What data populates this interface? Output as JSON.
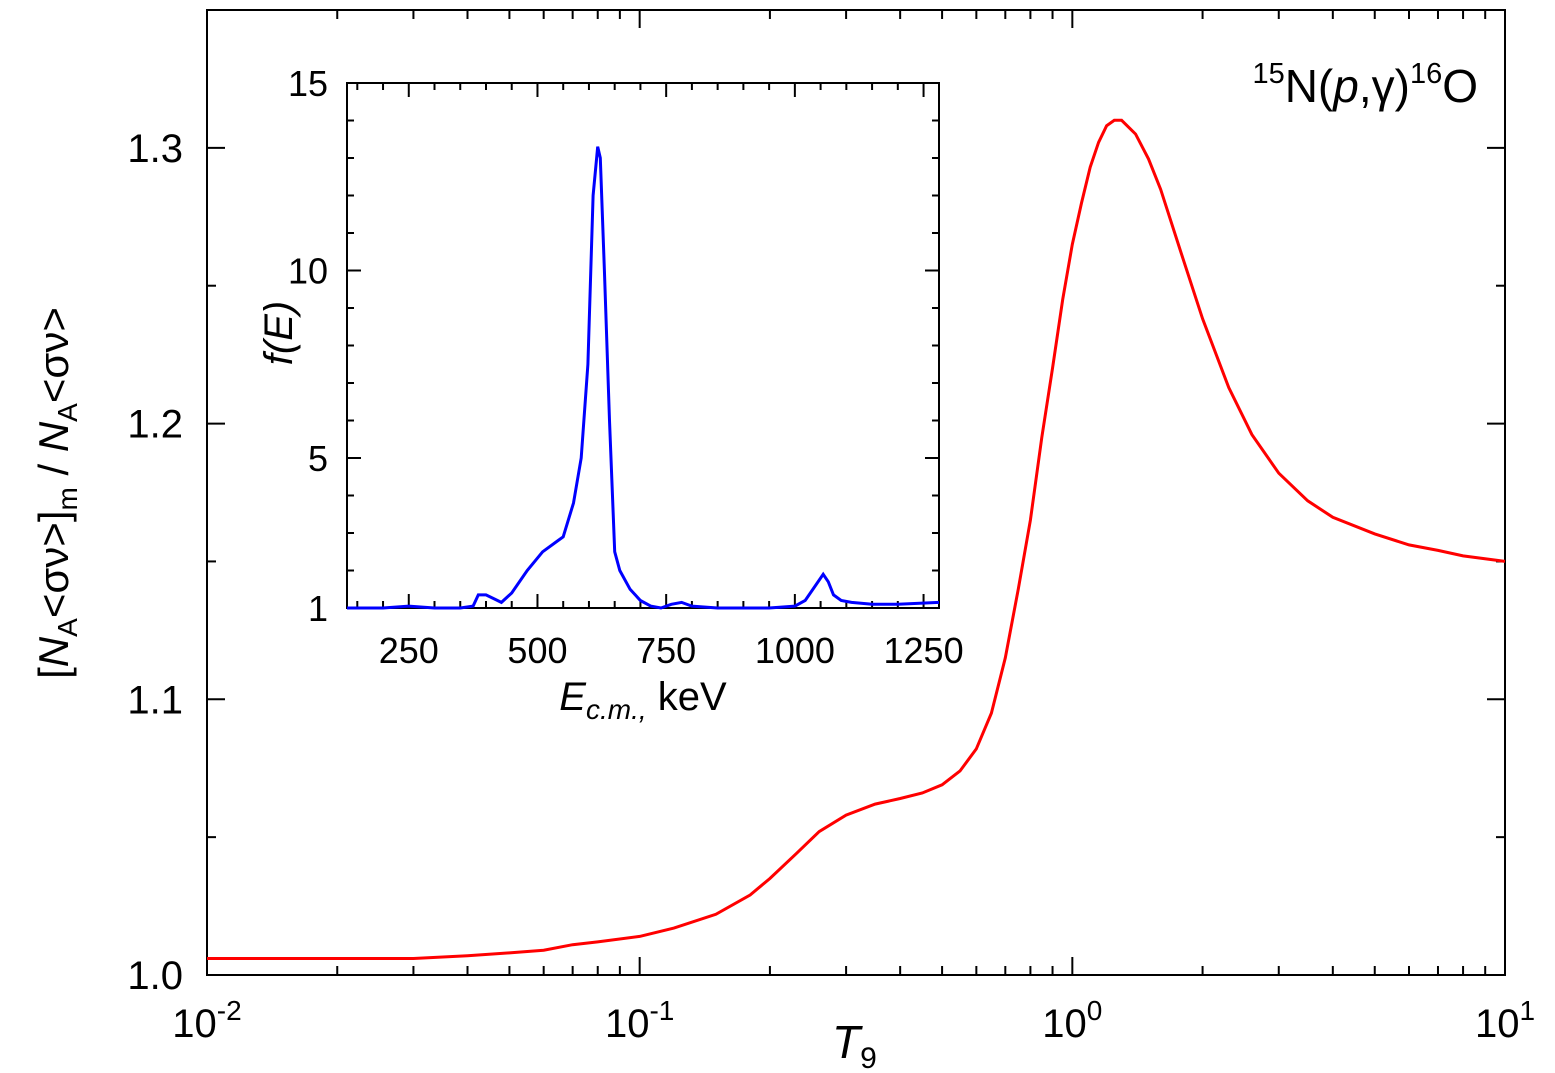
{
  "chart_data": [
    {
      "type": "line",
      "name": "main",
      "title": "",
      "annotation": {
        "prefix_sup": "15",
        "nucleus": "N(",
        "p": "p",
        "sep": ",",
        "gamma": "γ",
        "close": ")",
        "suffix_sup": "16",
        "product": "O"
      },
      "xlabel": {
        "main": "T",
        "sub": "9"
      },
      "ylabel": {
        "open": "[",
        "N1": "N",
        "A1": "A",
        "sv1": "<σν>]",
        "m": "m",
        "div": " / ",
        "N2": "N",
        "A2": "A",
        "sv2": "<σν>"
      },
      "xscale": "log",
      "xlim": [
        0.01,
        10
      ],
      "ylim": [
        1.0,
        1.35
      ],
      "x_ticks": [
        {
          "value": 0.01,
          "base": "10",
          "exp": "-2"
        },
        {
          "value": 0.1,
          "base": "10",
          "exp": "-1"
        },
        {
          "value": 1,
          "base": "10",
          "exp": "0"
        },
        {
          "value": 10,
          "base": "10",
          "exp": "1"
        }
      ],
      "y_ticks": [
        {
          "value": 1.0,
          "label": "1.0"
        },
        {
          "value": 1.1,
          "label": "1.1"
        },
        {
          "value": 1.2,
          "label": "1.2"
        },
        {
          "value": 1.3,
          "label": "1.3"
        }
      ],
      "series": [
        {
          "name": "ratio",
          "color": "#ff0000",
          "x": [
            0.01,
            0.02,
            0.03,
            0.04,
            0.05,
            0.06,
            0.07,
            0.08,
            0.1,
            0.12,
            0.15,
            0.18,
            0.2,
            0.23,
            0.26,
            0.3,
            0.35,
            0.4,
            0.45,
            0.5,
            0.55,
            0.6,
            0.65,
            0.7,
            0.75,
            0.8,
            0.85,
            0.9,
            0.95,
            1.0,
            1.05,
            1.1,
            1.15,
            1.2,
            1.25,
            1.3,
            1.4,
            1.5,
            1.6,
            1.8,
            2.0,
            2.3,
            2.6,
            3.0,
            3.5,
            4.0,
            5.0,
            6.0,
            7.0,
            8.0,
            10.0
          ],
          "y": [
            1.006,
            1.006,
            1.006,
            1.007,
            1.008,
            1.009,
            1.011,
            1.012,
            1.014,
            1.017,
            1.022,
            1.029,
            1.035,
            1.044,
            1.052,
            1.058,
            1.062,
            1.064,
            1.066,
            1.069,
            1.074,
            1.082,
            1.095,
            1.115,
            1.14,
            1.165,
            1.195,
            1.22,
            1.245,
            1.265,
            1.28,
            1.293,
            1.302,
            1.308,
            1.31,
            1.31,
            1.305,
            1.296,
            1.285,
            1.26,
            1.238,
            1.213,
            1.196,
            1.182,
            1.172,
            1.166,
            1.16,
            1.156,
            1.154,
            1.152,
            1.15
          ]
        }
      ]
    },
    {
      "type": "line",
      "name": "inset",
      "xlabel": {
        "main": "E",
        "sub": "c.m.,",
        "unit": " keV"
      },
      "ylabel": "f(E)",
      "xlim": [
        130,
        1280
      ],
      "ylim": [
        1,
        15
      ],
      "x_ticks": [
        250,
        500,
        750,
        1000,
        1250
      ],
      "y_ticks": [
        1,
        5,
        10,
        15
      ],
      "series": [
        {
          "name": "f(E)",
          "color": "#0000ff",
          "x": [
            130,
            200,
            250,
            300,
            350,
            375,
            385,
            400,
            415,
            430,
            450,
            480,
            510,
            540,
            550,
            570,
            585,
            598,
            608,
            617,
            622,
            630,
            640,
            650,
            660,
            680,
            700,
            720,
            740,
            760,
            780,
            800,
            850,
            900,
            950,
            1000,
            1020,
            1040,
            1055,
            1065,
            1075,
            1090,
            1110,
            1150,
            1200,
            1280
          ],
          "y": [
            1.0,
            1.0,
            1.05,
            1.0,
            1.0,
            1.05,
            1.35,
            1.35,
            1.25,
            1.15,
            1.4,
            2.0,
            2.5,
            2.8,
            2.9,
            3.8,
            5.0,
            7.5,
            12.0,
            13.3,
            13.0,
            10.0,
            6.0,
            2.5,
            2.0,
            1.5,
            1.2,
            1.05,
            1.0,
            1.1,
            1.15,
            1.05,
            1.0,
            1.0,
            1.0,
            1.05,
            1.2,
            1.6,
            1.9,
            1.7,
            1.35,
            1.2,
            1.15,
            1.1,
            1.1,
            1.15
          ]
        }
      ]
    }
  ]
}
